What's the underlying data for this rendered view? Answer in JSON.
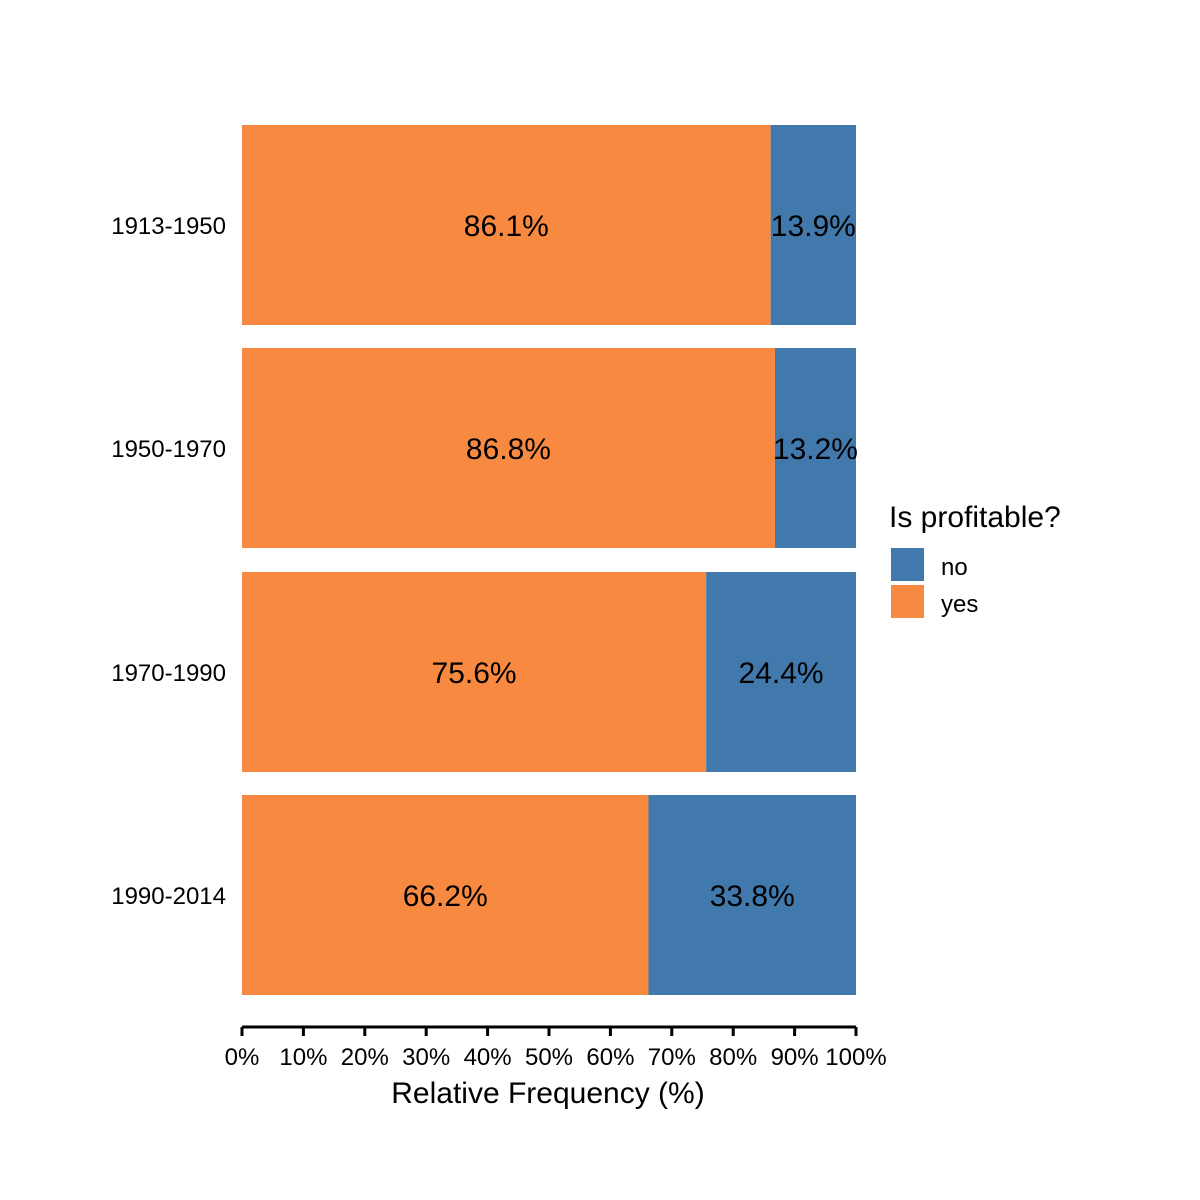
{
  "chart_data": {
    "type": "bar",
    "orientation": "horizontal",
    "stacked": true,
    "categories": [
      "1913-1950",
      "1950-1970",
      "1970-1990",
      "1990-2014"
    ],
    "series": [
      {
        "name": "yes",
        "color": "#F88941",
        "values": [
          86.1,
          86.8,
          75.6,
          66.2
        ],
        "labels": [
          "86.1%",
          "86.8%",
          "75.6%",
          "66.2%"
        ]
      },
      {
        "name": "no",
        "color": "#4279AC",
        "values": [
          13.9,
          13.2,
          24.4,
          33.8
        ],
        "labels": [
          "13.9%",
          "13.2%",
          "24.4%",
          "33.8%"
        ]
      }
    ],
    "xlabel": "Relative Frequency (%)",
    "ylabel": "",
    "xlim": [
      0,
      100
    ],
    "x_ticks": [
      "0%",
      "10%",
      "20%",
      "30%",
      "40%",
      "50%",
      "60%",
      "70%",
      "80%",
      "90%",
      "100%"
    ],
    "grid": false,
    "legend": {
      "title": "Is profitable?",
      "placement": "right",
      "entries": [
        {
          "name": "no",
          "color": "#4279AC"
        },
        {
          "name": "yes",
          "color": "#F88941"
        }
      ]
    }
  }
}
